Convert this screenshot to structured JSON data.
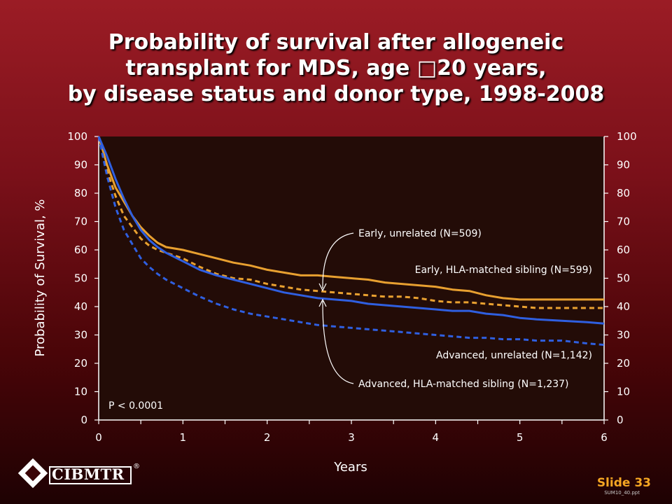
{
  "title": {
    "line1": "Probability of survival after allogeneic",
    "line2": "transplant for MDS, age □20 years,",
    "line3": "by disease status and donor type, 1998-2008"
  },
  "slide_number": "Slide 33",
  "file_ref": "SUM10_40.ppt",
  "logo_text": "CIBMTR",
  "logo_mark": "®",
  "colors": {
    "plot_background": "#230c07",
    "orange": "#e8a030",
    "blue": "#2f5fe0",
    "axis": "#ffffff"
  },
  "chart_data": {
    "type": "line",
    "xlabel": "Years",
    "ylabel": "Probability of Survival, %",
    "xlim": [
      0,
      6
    ],
    "ylim": [
      0,
      100
    ],
    "x_ticks": [
      "0",
      "1",
      "2",
      "3",
      "4",
      "5",
      "6"
    ],
    "y_ticks": [
      "0",
      "10",
      "20",
      "30",
      "40",
      "50",
      "60",
      "70",
      "80",
      "90",
      "100"
    ],
    "secondary_y_axis": true,
    "grid": false,
    "pvalue_label": "P < 0.0001",
    "series": [
      {
        "name": "Early, unrelated (N=509)",
        "color": "orange",
        "style": "solid",
        "x": [
          0,
          0.1,
          0.2,
          0.3,
          0.4,
          0.5,
          0.6,
          0.7,
          0.8,
          1.0,
          1.2,
          1.4,
          1.6,
          1.8,
          2.0,
          2.2,
          2.4,
          2.6,
          2.8,
          3.0,
          3.2,
          3.4,
          3.6,
          3.8,
          4.0,
          4.2,
          4.4,
          4.6,
          4.8,
          5.0,
          5.5,
          6.0
        ],
        "y": [
          100,
          90,
          82,
          77,
          72,
          68,
          65,
          62.5,
          61,
          60,
          58.5,
          57,
          55.5,
          54.5,
          53,
          52,
          51,
          51,
          50.5,
          50,
          49.5,
          48.5,
          48,
          47.5,
          47,
          46,
          45.5,
          44,
          43,
          42.5,
          42.5,
          42.5
        ]
      },
      {
        "name": "Early, HLA-matched sibling (N=599)",
        "color": "orange",
        "style": "dashed",
        "x": [
          0,
          0.1,
          0.2,
          0.3,
          0.4,
          0.5,
          0.6,
          0.7,
          0.8,
          1.0,
          1.2,
          1.4,
          1.6,
          1.8,
          2.0,
          2.2,
          2.4,
          2.6,
          2.8,
          3.0,
          3.2,
          3.4,
          3.6,
          3.8,
          4.0,
          4.2,
          4.4,
          4.6,
          4.8,
          5.0,
          5.2,
          5.5,
          6.0
        ],
        "y": [
          100,
          88,
          79,
          72,
          68,
          64,
          61.5,
          60,
          59,
          57,
          54,
          51.5,
          50,
          49.5,
          48,
          47,
          46,
          45.5,
          45,
          44.5,
          44,
          43.5,
          43.5,
          43,
          42,
          41.5,
          41.5,
          41,
          40.5,
          40,
          39.5,
          39.5,
          39.5
        ]
      },
      {
        "name": "Advanced, unrelated (N=1,142)",
        "color": "blue",
        "style": "solid",
        "x": [
          0,
          0.1,
          0.2,
          0.3,
          0.4,
          0.5,
          0.6,
          0.7,
          0.8,
          1.0,
          1.2,
          1.4,
          1.6,
          1.8,
          2.0,
          2.2,
          2.4,
          2.6,
          2.8,
          3.0,
          3.2,
          3.4,
          3.6,
          3.8,
          4.0,
          4.2,
          4.4,
          4.6,
          4.8,
          5.0,
          5.2,
          5.5,
          5.8,
          6.0
        ],
        "y": [
          100,
          93,
          85,
          78,
          72,
          67,
          63.5,
          61,
          59,
          56,
          53,
          51,
          49.5,
          48,
          46.5,
          45,
          44,
          43,
          42.5,
          42,
          41,
          40.5,
          40,
          39.5,
          39,
          38.5,
          38.5,
          37.5,
          37,
          36,
          35.5,
          35,
          34.5,
          34
        ]
      },
      {
        "name": "Advanced, HLA-matched sibling (N=1,237)",
        "color": "blue",
        "style": "dashed",
        "x": [
          0,
          0.1,
          0.2,
          0.3,
          0.4,
          0.5,
          0.6,
          0.7,
          0.8,
          1.0,
          1.2,
          1.4,
          1.6,
          1.8,
          2.0,
          2.2,
          2.4,
          2.6,
          2.8,
          3.0,
          3.2,
          3.4,
          3.6,
          3.8,
          4.0,
          4.2,
          4.4,
          4.6,
          4.8,
          5.0,
          5.2,
          5.5,
          5.8,
          6.0
        ],
        "y": [
          100,
          86,
          75,
          67,
          62,
          57,
          54,
          51.5,
          49.5,
          46.5,
          43.5,
          41,
          39,
          37.5,
          36.5,
          35.5,
          34.5,
          33.5,
          33,
          32.5,
          32,
          31.5,
          31,
          30.5,
          30,
          29.5,
          29,
          29,
          28.5,
          28.5,
          28,
          28,
          27,
          26.5
        ]
      }
    ],
    "annotations": {
      "early_label": "Early, unrelated (N=509)",
      "early_sib_label": "Early, HLA-matched sibling (N=599)",
      "adv_label": "Advanced, unrelated (N=1,142)",
      "adv_sib_label": "Advanced, HLA-matched sibling (N=1,237)"
    }
  }
}
